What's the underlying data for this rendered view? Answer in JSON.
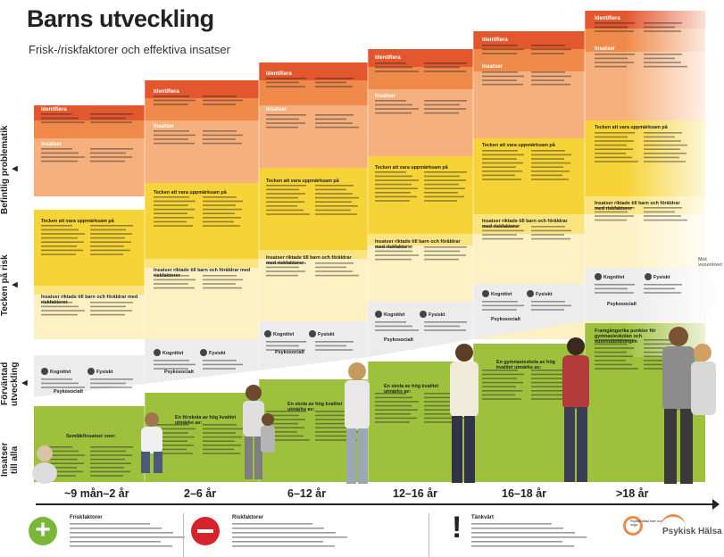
{
  "header": {
    "title": "Barns utveckling",
    "subtitle": "Frisk-/riskfaktorer och effektiva insatser"
  },
  "side_labels": [
    {
      "text": "Befintlig problematik",
      "arrow": "▶"
    },
    {
      "text": "Tecken på risk",
      "arrow": "▶"
    },
    {
      "text": "Förväntad utveckling",
      "arrow": "▶"
    },
    {
      "text": "Insatser till alla",
      "arrow": ""
    }
  ],
  "columns": [
    {
      "identifiera": "Identifiera",
      "insatser": "Insatser",
      "tecken": "Tecken att vara uppmärksam på",
      "riktade": "Insatser riktade till barn och föräldrar med riskfaktorer",
      "kognitivt": "Kognitivt",
      "fysiskt": "Fysiskt",
      "psykosocialt": "Psykosocialt",
      "green": "Semläkfinsatser som:",
      "age": "~9 mån–2 år"
    },
    {
      "identifiera": "Identifiera",
      "insatser": "Insatser",
      "tecken": "Tecken att vara uppmärksam på",
      "riktade": "Insatser riktade till barn och föräldrar med riskfaktorer",
      "kognitivt": "Kognitivt",
      "fysiskt": "Fysiskt",
      "psykosocialt": "Psykosocialt",
      "green": "En förskola av hög kvalitet utmärks av:",
      "age": "2–6 år"
    },
    {
      "identifiera": "Identifiera",
      "insatser": "Insatser",
      "tecken": "Tecken att vara uppmärksam på",
      "riktade": "Insatser riktade till barn och föräldrar med riskfaktorer",
      "kognitivt": "Kognitivt",
      "fysiskt": "Fysiskt",
      "psykosocialt": "Psykosocialt",
      "green": "En skola av hög kvalitet utmärks av:",
      "age": "6–12 år"
    },
    {
      "identifiera": "Identifiera",
      "insatser": "Insatser",
      "tecken": "Tecken att vara uppmärksam på",
      "riktade": "Insatser riktade till barn och föräldrar med riskfaktorer",
      "kognitivt": "Kognitivt",
      "fysiskt": "Fysiskt",
      "psykosocialt": "Psykosocialt",
      "green": "En skola av hög kvalitet utmärks av:",
      "age": "12–16 år"
    },
    {
      "identifiera": "Identifiera",
      "insatser": "Insatser",
      "tecken": "Tecken att vara uppmärksam på",
      "riktade": "Insatser riktade till barn och föräldrar med riskfaktorer",
      "kognitivt": "Kognitivt",
      "fysiskt": "Fysiskt",
      "psykosocialt": "Psykosocialt",
      "green": "En gymnasieskola av hög kvalitet utmärks av:",
      "age": "16–18 år"
    },
    {
      "identifiera": "Identifiera",
      "insatser": "Insatser",
      "tecken": "Tecken att vara uppmärksam på",
      "riktade": "Insatser riktade till barn och föräldrar med riskfaktorer",
      "kognitivt": "Kognitivt",
      "fysiskt": "Fysiskt",
      "psykosocialt": "Psykosocialt",
      "green": "Framgångsrika punkter för gymnasieskolan och vuxenutbildningen",
      "age": ">18 år"
    }
  ],
  "mot_vuxenlivet": "Mot vuxenlivet",
  "footer": {
    "friskfaktorer": "Friskfaktorer",
    "riskfaktorer": "Riskfaktorer",
    "tankvart": "Tänkvärt",
    "logo1": "Psykisk hälsa barn och unga",
    "logo2": "Psykisk Hälsa"
  },
  "colors": {
    "red": "#e2572e",
    "orange": "#f08a4b",
    "salmon": "#f6b07e",
    "yellow": "#f6d336",
    "paleyellow": "#fbe47e",
    "cream": "#fdf1c4",
    "grey": "#ececec",
    "green": "#9dc13c",
    "plus": "#7ab638",
    "minus": "#d6222a"
  }
}
